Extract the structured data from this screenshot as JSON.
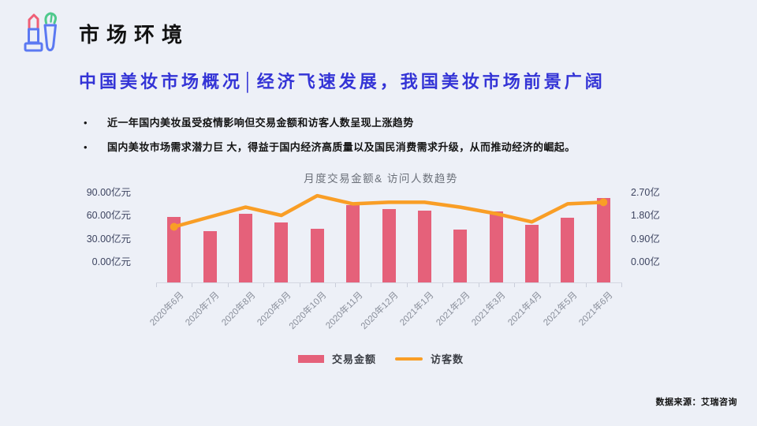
{
  "header": {
    "title": "市场环境"
  },
  "headline": "中国美妆市场概况│经济飞速发展，我国美妆市场前景广阔",
  "bullets": [
    "近一年国内美妆虽受疫情影响但交易金额和访客人数呈现上涨趋势",
    "国内美妆市场需求潜力巨 大，得益于国内经济高质量以及国民消费需求升级，从而推动经济的崛起。"
  ],
  "source": "数据来源：艾瑞咨询",
  "colors": {
    "background": "#edf0f7",
    "headline_blue": "#3434d6",
    "bar_pink": "#e5617a",
    "line_orange": "#f99e26",
    "axis_text": "#3d4460",
    "xlabel_gray": "#8a8f9b"
  },
  "icon": {
    "name": "lipstick-and-brush-icon",
    "lipstick_pink": "#ef5f76",
    "body_blue": "#5b79f2",
    "bristle_green": "#4fc98c"
  },
  "chart_data": {
    "type": "bar",
    "combo": "bar+line",
    "title": "月度交易金额& 访问人数趋势",
    "categories": [
      "2020年6月",
      "2020年7月",
      "2020年8月",
      "2020年9月",
      "2020年10月",
      "2020年11月",
      "2020年12月",
      "2021年1月",
      "2021年2月",
      "2021年3月",
      "2021年4月",
      "2021年5月",
      "2021年6月"
    ],
    "series": [
      {
        "name": "交易金额",
        "type": "bar",
        "axis": "left",
        "unit": "亿元",
        "values": [
          67,
          52,
          70,
          61,
          55,
          79,
          75,
          73,
          54,
          72,
          59,
          66,
          86
        ]
      },
      {
        "name": "访客数",
        "type": "line",
        "axis": "right",
        "unit": "亿",
        "values": [
          1.7,
          2.0,
          2.3,
          2.05,
          2.65,
          2.4,
          2.45,
          2.45,
          2.3,
          2.1,
          1.85,
          2.4,
          2.45
        ]
      }
    ],
    "left_axis": {
      "labels": [
        "90.00亿元",
        "60.00亿元",
        "30.00亿元",
        "0.00亿元"
      ],
      "min": 0,
      "max": 90
    },
    "right_axis": {
      "labels": [
        "2.70亿",
        "1.80亿",
        "0.90亿",
        "0.00亿"
      ],
      "min": 0,
      "max": 2.7
    },
    "legend": [
      "交易金额",
      "访客数"
    ],
    "legend_position": "bottom",
    "grid": false
  }
}
